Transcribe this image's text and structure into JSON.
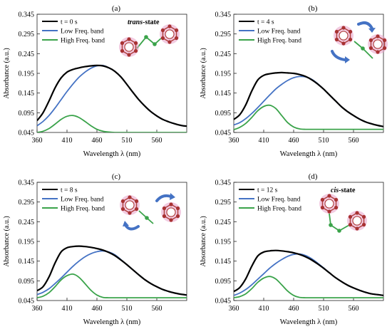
{
  "figure": {
    "panels": [
      {
        "label": "(a)",
        "legend": [
          "t = 0 s",
          "Low Freq. band",
          "High Freq. band"
        ],
        "state_label": "trans-state",
        "state_prefix": "trans",
        "state_suffix": "-state",
        "molecule": "trans",
        "arrows": false
      },
      {
        "label": "(b)",
        "legend": [
          "t = 4 s",
          "Low Freq. band",
          "High Freq. band"
        ],
        "state_label": "",
        "molecule": "twist",
        "arrows": true
      },
      {
        "label": "(c)",
        "legend": [
          "t = 8 s",
          "Low Freq. band",
          "High Freq. band"
        ],
        "state_label": "",
        "molecule": "twist2",
        "arrows": true
      },
      {
        "label": "(d)",
        "legend": [
          "t = 12 s",
          "Low Freq. band",
          "High Freq. band"
        ],
        "state_label": "cis-state",
        "state_prefix": "cis",
        "state_suffix": "-state",
        "molecule": "cis",
        "arrows": false
      }
    ],
    "colors": {
      "total": "#000000",
      "low": "#4472c4",
      "high": "#3aa34a",
      "ring": "#e8a0c8",
      "atom": "#a83232",
      "bond": "#3aa34a",
      "arrow": "#4472c4"
    }
  },
  "chart_data": [
    {
      "type": "line",
      "title": "(a)",
      "xlabel": "Wavelength λ (nm)",
      "ylabel": "Absorbance (a.u.)",
      "xlim": [
        360,
        610
      ],
      "ylim": [
        0.045,
        0.345
      ],
      "x_ticks": [
        360,
        410,
        460,
        510,
        560
      ],
      "y_ticks": [
        0.045,
        0.095,
        0.145,
        0.195,
        0.245,
        0.295,
        0.345
      ],
      "x_tick_labels": [
        "360",
        "410",
        "460",
        "510",
        "560"
      ],
      "y_tick_labels": [
        "0.045",
        "0.095",
        "0.145",
        "0.195",
        "0.245",
        "0.295",
        "0.345"
      ],
      "series": [
        {
          "name": "t = 0 s",
          "key": "total",
          "x": [
            360,
            370,
            380,
            390,
            400,
            410,
            420,
            430,
            440,
            450,
            460,
            470,
            480,
            490,
            500,
            510,
            520,
            530,
            540,
            550,
            560,
            570,
            580,
            590,
            600,
            610
          ],
          "y": [
            0.075,
            0.095,
            0.125,
            0.158,
            0.183,
            0.198,
            0.205,
            0.209,
            0.212,
            0.214,
            0.215,
            0.214,
            0.209,
            0.2,
            0.186,
            0.167,
            0.147,
            0.128,
            0.112,
            0.098,
            0.087,
            0.078,
            0.072,
            0.067,
            0.063,
            0.061
          ]
        },
        {
          "name": "Low Freq. band",
          "key": "low",
          "x": [
            360,
            370,
            380,
            390,
            400,
            410,
            420,
            430,
            440,
            450,
            460,
            470,
            480,
            490,
            500,
            510,
            520,
            530,
            540,
            550,
            560,
            570,
            580,
            590,
            600,
            610
          ],
          "y": [
            0.062,
            0.073,
            0.088,
            0.107,
            0.128,
            0.149,
            0.168,
            0.185,
            0.198,
            0.208,
            0.214,
            0.215,
            0.209,
            0.2,
            0.186,
            0.167,
            0.147,
            0.128,
            0.112,
            0.098,
            0.087,
            0.078,
            0.072,
            0.067,
            0.063,
            0.061
          ]
        },
        {
          "name": "High Freq. band",
          "key": "high",
          "x": [
            360,
            370,
            380,
            390,
            400,
            410,
            420,
            430,
            440,
            450,
            460,
            470,
            480,
            490,
            500,
            510,
            520,
            530,
            540,
            550,
            560,
            570,
            580,
            590,
            600,
            610
          ],
          "y": [
            0.045,
            0.048,
            0.055,
            0.066,
            0.078,
            0.086,
            0.088,
            0.083,
            0.073,
            0.062,
            0.053,
            0.048,
            0.046,
            0.045,
            0.045,
            0.045,
            0.045,
            0.045,
            0.045,
            0.045,
            0.045,
            0.045,
            0.045,
            0.045,
            0.045,
            0.045
          ]
        }
      ]
    },
    {
      "type": "line",
      "title": "(b)",
      "xlabel": "Wavelength λ (nm)",
      "ylabel": "Absorbance (a.u.)",
      "xlim": [
        360,
        610
      ],
      "ylim": [
        0.045,
        0.345
      ],
      "x_ticks": [
        360,
        410,
        460,
        510,
        560
      ],
      "y_ticks": [
        0.045,
        0.095,
        0.145,
        0.195,
        0.245,
        0.295,
        0.345
      ],
      "x_tick_labels": [
        "360",
        "410",
        "460",
        "510",
        "560"
      ],
      "y_tick_labels": [
        "0.045",
        "0.095",
        "0.145",
        "0.195",
        "0.245",
        "0.295",
        "0.345"
      ],
      "series": [
        {
          "name": "t = 4 s",
          "key": "total",
          "x": [
            360,
            370,
            380,
            390,
            400,
            410,
            420,
            430,
            440,
            450,
            460,
            470,
            480,
            490,
            500,
            510,
            520,
            530,
            540,
            550,
            560,
            570,
            580,
            590,
            600,
            610
          ],
          "y": [
            0.078,
            0.09,
            0.115,
            0.15,
            0.178,
            0.19,
            0.194,
            0.196,
            0.197,
            0.196,
            0.195,
            0.192,
            0.187,
            0.179,
            0.168,
            0.155,
            0.14,
            0.125,
            0.11,
            0.098,
            0.088,
            0.079,
            0.072,
            0.067,
            0.063,
            0.06
          ]
        },
        {
          "name": "Low Freq. band",
          "key": "low",
          "x": [
            360,
            370,
            380,
            390,
            400,
            410,
            420,
            430,
            440,
            450,
            460,
            470,
            480,
            490,
            500,
            510,
            520,
            530,
            540,
            550,
            560,
            570,
            580,
            590,
            600,
            610
          ],
          "y": [
            0.064,
            0.07,
            0.08,
            0.093,
            0.108,
            0.124,
            0.14,
            0.155,
            0.167,
            0.177,
            0.184,
            0.187,
            0.186,
            0.18,
            0.169,
            0.155,
            0.14,
            0.125,
            0.11,
            0.098,
            0.088,
            0.079,
            0.072,
            0.067,
            0.063,
            0.06
          ]
        },
        {
          "name": "High Freq. band",
          "key": "high",
          "x": [
            360,
            370,
            380,
            390,
            400,
            410,
            420,
            430,
            440,
            450,
            460,
            470,
            480,
            490,
            500,
            510,
            520,
            530,
            540,
            550,
            560,
            570,
            580,
            590,
            600,
            610
          ],
          "y": [
            0.052,
            0.058,
            0.068,
            0.083,
            0.1,
            0.111,
            0.114,
            0.106,
            0.088,
            0.07,
            0.059,
            0.054,
            0.053,
            0.053,
            0.053,
            0.053,
            0.053,
            0.053,
            0.053,
            0.053,
            0.053,
            0.053,
            0.053,
            0.053,
            0.053,
            0.053
          ]
        }
      ]
    },
    {
      "type": "line",
      "title": "(c)",
      "xlabel": "Wavelength λ (nm)",
      "ylabel": "Absorbance (a.u.)",
      "xlim": [
        360,
        610
      ],
      "ylim": [
        0.045,
        0.345
      ],
      "x_ticks": [
        360,
        410,
        460,
        510,
        560
      ],
      "y_ticks": [
        0.045,
        0.095,
        0.145,
        0.195,
        0.245,
        0.295,
        0.345
      ],
      "x_tick_labels": [
        "360",
        "410",
        "460",
        "510",
        "560"
      ],
      "y_tick_labels": [
        "0.045",
        "0.095",
        "0.145",
        "0.195",
        "0.245",
        "0.295",
        "0.345"
      ],
      "series": [
        {
          "name": "t = 8 s",
          "key": "total",
          "x": [
            360,
            370,
            380,
            390,
            400,
            410,
            420,
            430,
            440,
            450,
            460,
            470,
            480,
            490,
            500,
            510,
            520,
            530,
            540,
            550,
            560,
            570,
            580,
            590,
            600,
            610
          ],
          "y": [
            0.07,
            0.08,
            0.105,
            0.14,
            0.168,
            0.179,
            0.182,
            0.183,
            0.182,
            0.18,
            0.177,
            0.173,
            0.167,
            0.159,
            0.148,
            0.136,
            0.123,
            0.11,
            0.098,
            0.088,
            0.08,
            0.073,
            0.068,
            0.064,
            0.061,
            0.059
          ]
        },
        {
          "name": "Low Freq. band",
          "key": "low",
          "x": [
            360,
            370,
            380,
            390,
            400,
            410,
            420,
            430,
            440,
            450,
            460,
            470,
            480,
            490,
            500,
            510,
            520,
            530,
            540,
            550,
            560,
            570,
            580,
            590,
            600,
            610
          ],
          "y": [
            0.06,
            0.066,
            0.075,
            0.088,
            0.102,
            0.117,
            0.132,
            0.145,
            0.156,
            0.164,
            0.169,
            0.171,
            0.168,
            0.161,
            0.149,
            0.136,
            0.123,
            0.11,
            0.098,
            0.088,
            0.08,
            0.073,
            0.068,
            0.064,
            0.061,
            0.059
          ]
        },
        {
          "name": "High Freq. band",
          "key": "high",
          "x": [
            360,
            370,
            380,
            390,
            400,
            410,
            420,
            430,
            440,
            450,
            460,
            470,
            480,
            490,
            500,
            510,
            520,
            530,
            540,
            550,
            560,
            570,
            580,
            590,
            600,
            610
          ],
          "y": [
            0.052,
            0.056,
            0.065,
            0.08,
            0.097,
            0.108,
            0.112,
            0.104,
            0.088,
            0.071,
            0.059,
            0.053,
            0.052,
            0.052,
            0.052,
            0.052,
            0.052,
            0.052,
            0.052,
            0.052,
            0.052,
            0.052,
            0.052,
            0.052,
            0.052,
            0.052
          ]
        }
      ]
    },
    {
      "type": "line",
      "title": "(d)",
      "xlabel": "Wavelength λ (nm)",
      "ylabel": "Absorbance (a.u.)",
      "xlim": [
        360,
        610
      ],
      "ylim": [
        0.045,
        0.345
      ],
      "x_ticks": [
        360,
        410,
        460,
        510,
        560
      ],
      "y_ticks": [
        0.045,
        0.095,
        0.145,
        0.195,
        0.245,
        0.295,
        0.345
      ],
      "x_tick_labels": [
        "360",
        "410",
        "460",
        "510",
        "560"
      ],
      "y_tick_labels": [
        "0.045",
        "0.095",
        "0.145",
        "0.195",
        "0.245",
        "0.295",
        "0.345"
      ],
      "series": [
        {
          "name": "t = 12 s",
          "key": "total",
          "x": [
            360,
            370,
            380,
            390,
            400,
            410,
            420,
            430,
            440,
            450,
            460,
            470,
            480,
            490,
            500,
            510,
            520,
            530,
            540,
            550,
            560,
            570,
            580,
            590,
            600,
            610
          ],
          "y": [
            0.068,
            0.078,
            0.1,
            0.132,
            0.158,
            0.168,
            0.171,
            0.172,
            0.171,
            0.169,
            0.166,
            0.162,
            0.156,
            0.148,
            0.138,
            0.127,
            0.115,
            0.103,
            0.093,
            0.084,
            0.077,
            0.071,
            0.066,
            0.062,
            0.06,
            0.058
          ]
        },
        {
          "name": "Low Freq. band",
          "key": "low",
          "x": [
            360,
            370,
            380,
            390,
            400,
            410,
            420,
            430,
            440,
            450,
            460,
            470,
            480,
            490,
            500,
            510,
            520,
            530,
            540,
            550,
            560,
            570,
            580,
            590,
            600,
            610
          ],
          "y": [
            0.058,
            0.064,
            0.073,
            0.085,
            0.099,
            0.113,
            0.127,
            0.139,
            0.149,
            0.157,
            0.162,
            0.163,
            0.159,
            0.151,
            0.14,
            0.128,
            0.115,
            0.103,
            0.093,
            0.084,
            0.077,
            0.071,
            0.066,
            0.062,
            0.06,
            0.058
          ]
        },
        {
          "name": "High Freq. band",
          "key": "high",
          "x": [
            360,
            370,
            380,
            390,
            400,
            410,
            420,
            430,
            440,
            450,
            460,
            470,
            480,
            490,
            500,
            510,
            520,
            530,
            540,
            550,
            560,
            570,
            580,
            590,
            600,
            610
          ],
          "y": [
            0.052,
            0.055,
            0.062,
            0.075,
            0.091,
            0.102,
            0.106,
            0.1,
            0.085,
            0.069,
            0.058,
            0.053,
            0.052,
            0.052,
            0.052,
            0.052,
            0.052,
            0.052,
            0.052,
            0.052,
            0.052,
            0.052,
            0.052,
            0.052,
            0.052,
            0.052
          ]
        }
      ]
    }
  ]
}
